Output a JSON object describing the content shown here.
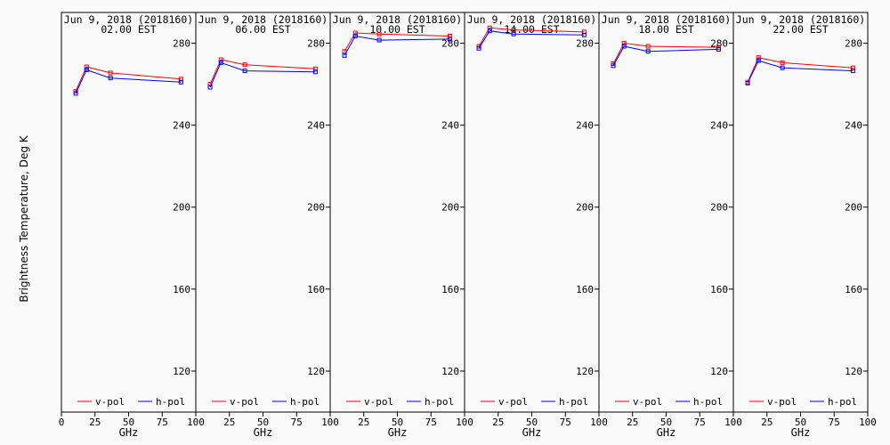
{
  "figure": {
    "ylabel": "Brightness Temperature, Deg K",
    "xlabel": "GHz",
    "colors": {
      "v_pol": "#ff0000",
      "h_pol": "#0000ff",
      "axis": "#000000",
      "background": "#fafafa"
    }
  },
  "chart_data": [
    {
      "type": "line",
      "title": "Jun  9, 2018 (2018160)",
      "subtitle": "02.00 EST",
      "xlabel": "GHz",
      "ylabel": "Brightness Temperature, Deg K",
      "xlim": [
        0,
        100
      ],
      "ylim": [
        100,
        295
      ],
      "xticks": [
        0,
        25,
        50,
        75,
        100
      ],
      "yticks": [
        120,
        160,
        200,
        240,
        280
      ],
      "legend_position": "bottom",
      "series": [
        {
          "name": "v-pol",
          "color": "#ff0000",
          "x": [
            10.65,
            18.7,
            36.5,
            89.0
          ],
          "y": [
            256.5,
            268.5,
            265.5,
            262.5
          ]
        },
        {
          "name": "h-pol",
          "color": "#0000ff",
          "x": [
            10.65,
            18.7,
            36.5,
            89.0
          ],
          "y": [
            255.5,
            267.0,
            263.0,
            261.0
          ]
        }
      ]
    },
    {
      "type": "line",
      "title": "Jun  9, 2018 (2018160)",
      "subtitle": "06.00 EST",
      "xlabel": "GHz",
      "ylabel": "Brightness Temperature, Deg K",
      "xlim": [
        0,
        100
      ],
      "ylim": [
        100,
        295
      ],
      "xticks": [
        0,
        25,
        50,
        75,
        100
      ],
      "yticks": [
        120,
        160,
        200,
        240,
        280
      ],
      "legend_position": "bottom",
      "series": [
        {
          "name": "v-pol",
          "color": "#ff0000",
          "x": [
            10.65,
            18.7,
            36.5,
            89.0
          ],
          "y": [
            260.0,
            272.0,
            269.5,
            267.5
          ]
        },
        {
          "name": "h-pol",
          "color": "#0000ff",
          "x": [
            10.65,
            18.7,
            36.5,
            89.0
          ],
          "y": [
            258.5,
            270.5,
            266.5,
            266.0
          ]
        }
      ]
    },
    {
      "type": "line",
      "title": "Jun  9, 2018 (2018160)",
      "subtitle": "10.00 EST",
      "xlabel": "GHz",
      "ylabel": "Brightness Temperature, Deg K",
      "xlim": [
        0,
        100
      ],
      "ylim": [
        100,
        295
      ],
      "xticks": [
        0,
        25,
        50,
        75,
        100
      ],
      "yticks": [
        120,
        160,
        200,
        240,
        280
      ],
      "legend_position": "bottom",
      "series": [
        {
          "name": "v-pol",
          "color": "#ff0000",
          "x": [
            10.65,
            18.7,
            36.5,
            89.0
          ],
          "y": [
            276.0,
            285.0,
            284.5,
            283.5
          ]
        },
        {
          "name": "h-pol",
          "color": "#0000ff",
          "x": [
            10.65,
            18.7,
            36.5,
            89.0
          ],
          "y": [
            274.0,
            283.5,
            281.5,
            282.0
          ]
        }
      ]
    },
    {
      "type": "line",
      "title": "Jun  9, 2018 (2018160)",
      "subtitle": "14.00 EST",
      "xlabel": "GHz",
      "ylabel": "Brightness Temperature, Deg K",
      "xlim": [
        0,
        100
      ],
      "ylim": [
        100,
        295
      ],
      "xticks": [
        0,
        25,
        50,
        75,
        100
      ],
      "yticks": [
        120,
        160,
        200,
        240,
        280
      ],
      "legend_position": "bottom",
      "series": [
        {
          "name": "v-pol",
          "color": "#ff0000",
          "x": [
            10.65,
            18.7,
            36.5,
            89.0
          ],
          "y": [
            278.5,
            287.5,
            286.5,
            285.5
          ]
        },
        {
          "name": "h-pol",
          "color": "#0000ff",
          "x": [
            10.65,
            18.7,
            36.5,
            89.0
          ],
          "y": [
            277.5,
            286.0,
            284.5,
            284.0
          ]
        }
      ]
    },
    {
      "type": "line",
      "title": "Jun  9, 2018 (2018160)",
      "subtitle": "18.00 EST",
      "xlabel": "GHz",
      "ylabel": "Brightness Temperature, Deg K",
      "xlim": [
        0,
        100
      ],
      "ylim": [
        100,
        295
      ],
      "xticks": [
        0,
        25,
        50,
        75,
        100
      ],
      "yticks": [
        120,
        160,
        200,
        240,
        280
      ],
      "legend_position": "bottom",
      "series": [
        {
          "name": "v-pol",
          "color": "#ff0000",
          "x": [
            10.65,
            18.7,
            36.5,
            89.0
          ],
          "y": [
            270.0,
            280.0,
            278.5,
            278.0
          ]
        },
        {
          "name": "h-pol",
          "color": "#0000ff",
          "x": [
            10.65,
            18.7,
            36.5,
            89.0
          ],
          "y": [
            269.0,
            278.5,
            276.0,
            277.0
          ]
        }
      ]
    },
    {
      "type": "line",
      "title": "Jun  9, 2018 (2018160)",
      "subtitle": "22.00 EST",
      "xlabel": "GHz",
      "ylabel": "Brightness Temperature, Deg K",
      "xlim": [
        0,
        100
      ],
      "ylim": [
        100,
        295
      ],
      "xticks": [
        0,
        25,
        50,
        75,
        100
      ],
      "yticks": [
        120,
        160,
        200,
        240,
        280
      ],
      "legend_position": "bottom",
      "series": [
        {
          "name": "v-pol",
          "color": "#ff0000",
          "x": [
            10.65,
            18.7,
            36.5,
            89.0
          ],
          "y": [
            261.0,
            273.0,
            270.5,
            268.0
          ]
        },
        {
          "name": "h-pol",
          "color": "#0000ff",
          "x": [
            10.65,
            18.7,
            36.5,
            89.0
          ],
          "y": [
            260.5,
            271.5,
            268.0,
            266.5
          ]
        }
      ]
    }
  ]
}
